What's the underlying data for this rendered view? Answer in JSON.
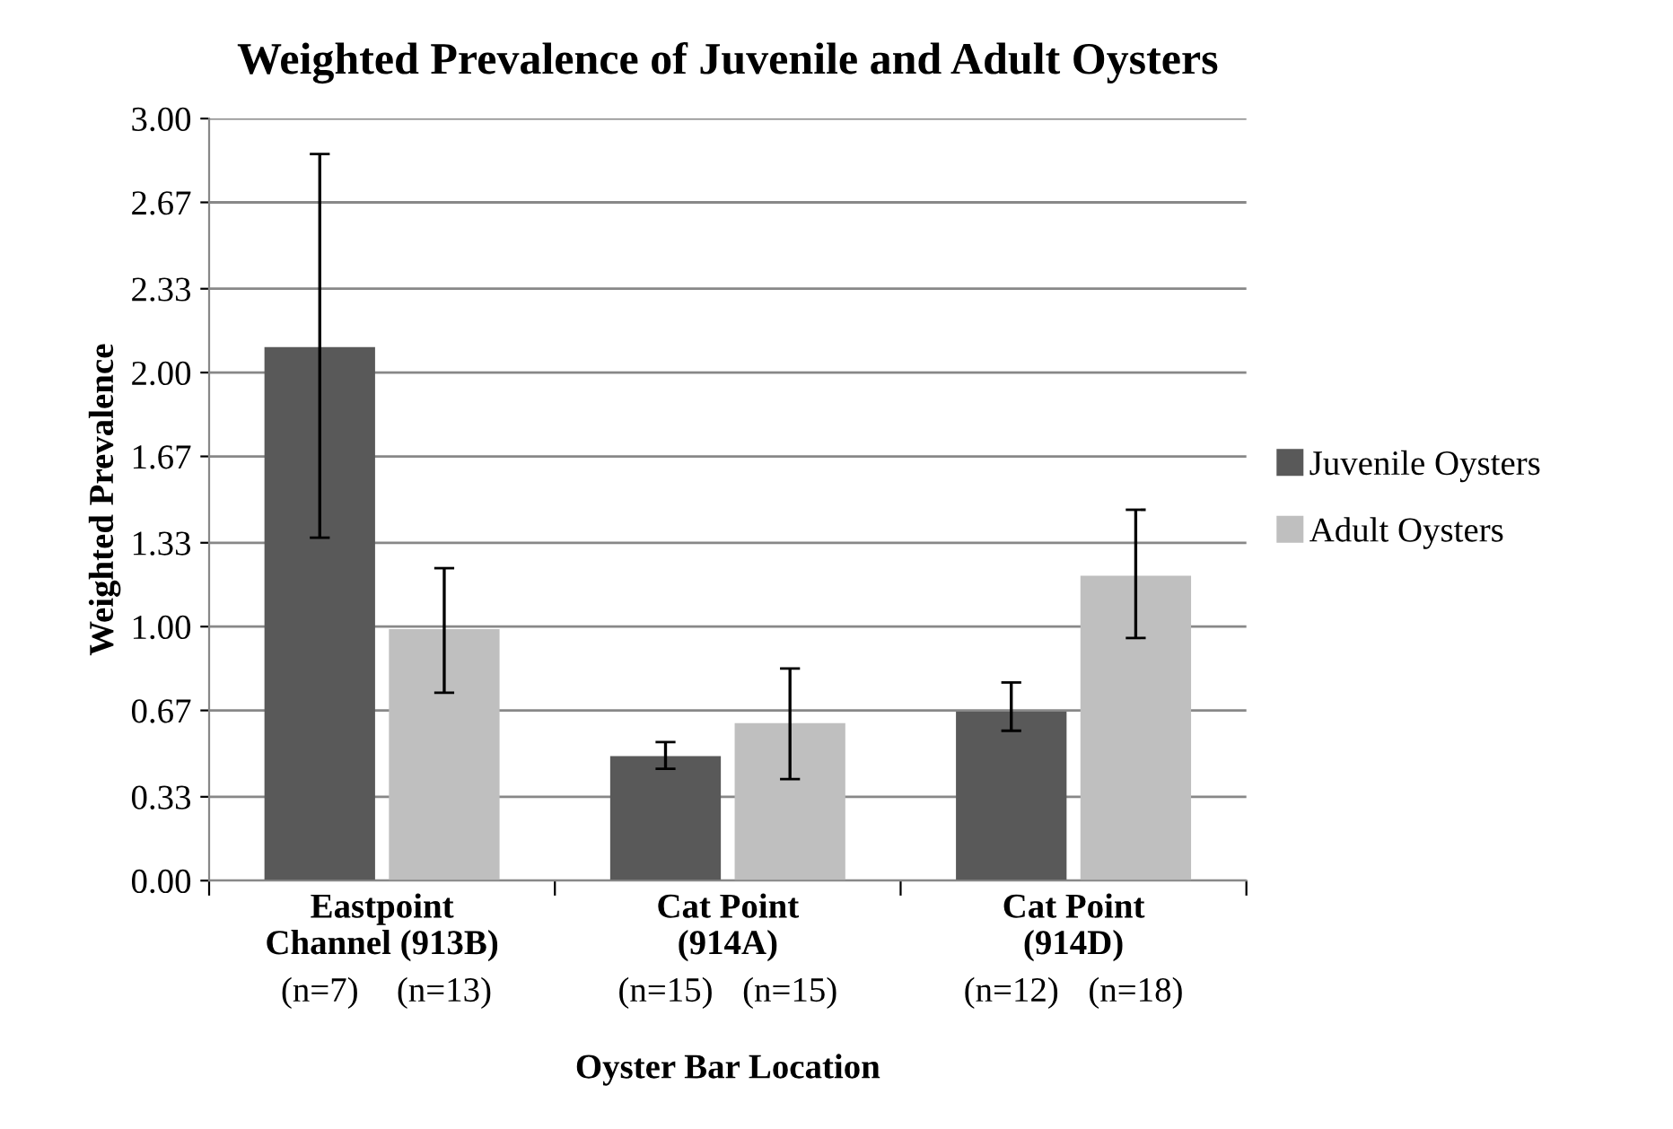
{
  "chart_data": {
    "type": "bar",
    "title": "Weighted Prevalence of Juvenile and Adult Oysters",
    "xlabel": "Oyster Bar Location",
    "ylabel": "Weighted Prevalence",
    "categories": [
      "Eastpoint\nChannel (913B)",
      "Cat Point\n(914A)",
      "Cat Point\n(914D)"
    ],
    "series": [
      {
        "name": "Juvenile Oysters",
        "color": "#595959",
        "values": [
          2.1,
          0.49,
          0.665
        ],
        "errors": [
          [
            1.35,
            2.86
          ],
          [
            0.44,
            0.545
          ],
          [
            0.59,
            0.78
          ]
        ]
      },
      {
        "name": "Adult Oysters",
        "color": "#bfbfbf",
        "values": [
          0.99,
          0.62,
          1.2
        ],
        "errors": [
          [
            0.74,
            1.23
          ],
          [
            0.4,
            0.835
          ],
          [
            0.955,
            1.46
          ]
        ]
      }
    ],
    "ylim": [
      0,
      3
    ],
    "yticks": [
      {
        "value": 0,
        "label": "0.00"
      },
      {
        "value": 0.33,
        "label": "0.33"
      },
      {
        "value": 0.67,
        "label": "0.67"
      },
      {
        "value": 1,
        "label": "1.00"
      },
      {
        "value": 1.33,
        "label": "1.33"
      },
      {
        "value": 1.67,
        "label": "1.67"
      },
      {
        "value": 2,
        "label": "2.00"
      },
      {
        "value": 2.33,
        "label": "2.33"
      },
      {
        "value": 2.67,
        "label": "2.67"
      },
      {
        "value": 3,
        "label": "3.00"
      }
    ],
    "grid": "y",
    "legend": "right",
    "annotations": [
      "(n=7)",
      "(n=13)",
      "(n=15)",
      "(n=15)",
      "(n=12)",
      "(n=18)"
    ]
  }
}
